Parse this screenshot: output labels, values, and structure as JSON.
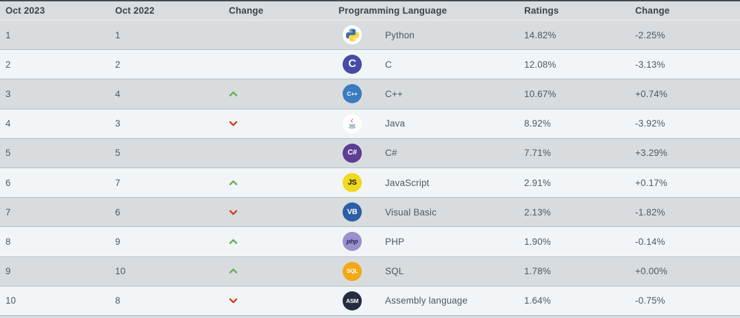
{
  "header": {
    "columns": [
      "Oct 2023",
      "Oct 2022",
      "Change",
      "Programming Language",
      "Ratings",
      "Change"
    ]
  },
  "rows": [
    {
      "oct2023": "1",
      "oct2022": "1",
      "rank_change": "",
      "language": "Python",
      "icon": {
        "name": "python-icon",
        "type": "python",
        "bg": "#ffffff"
      },
      "ratings": "14.82%",
      "change": "-2.25%"
    },
    {
      "oct2023": "2",
      "oct2022": "2",
      "rank_change": "",
      "language": "C",
      "icon": {
        "name": "c-icon",
        "type": "text",
        "bg": "#464ba5",
        "fg": "#ffffff",
        "label": "C"
      },
      "ratings": "12.08%",
      "change": "-3.13%"
    },
    {
      "oct2023": "3",
      "oct2022": "4",
      "rank_change": "up",
      "language": "C++",
      "icon": {
        "name": "cpp-icon",
        "type": "text",
        "bg": "#3b7bc0",
        "fg": "#ffffff",
        "label": "C++"
      },
      "ratings": "10.67%",
      "change": "+0.74%"
    },
    {
      "oct2023": "4",
      "oct2022": "3",
      "rank_change": "down",
      "language": "Java",
      "icon": {
        "name": "java-icon",
        "type": "java",
        "bg": "#ffffff"
      },
      "ratings": "8.92%",
      "change": "-3.92%"
    },
    {
      "oct2023": "5",
      "oct2022": "5",
      "rank_change": "",
      "language": "C#",
      "icon": {
        "name": "csharp-icon",
        "type": "text",
        "bg": "#5e3d94",
        "fg": "#ffffff",
        "label": "C#"
      },
      "ratings": "7.71%",
      "change": "+3.29%"
    },
    {
      "oct2023": "6",
      "oct2022": "7",
      "rank_change": "up",
      "language": "JavaScript",
      "icon": {
        "name": "javascript-icon",
        "type": "text",
        "bg": "#f0d91e",
        "fg": "#1a1a1a",
        "label": "JS"
      },
      "ratings": "2.91%",
      "change": "+0.17%"
    },
    {
      "oct2023": "7",
      "oct2022": "6",
      "rank_change": "down",
      "language": "Visual Basic",
      "icon": {
        "name": "visual-basic-icon",
        "type": "text",
        "bg": "#2c5fa5",
        "fg": "#ffffff",
        "label": "VB"
      },
      "ratings": "2.13%",
      "change": "-1.82%"
    },
    {
      "oct2023": "8",
      "oct2022": "9",
      "rank_change": "up",
      "language": "PHP",
      "icon": {
        "name": "php-icon",
        "type": "text",
        "bg": "#9a90cc",
        "fg": "#232a63",
        "label": "php",
        "italic": true
      },
      "ratings": "1.90%",
      "change": "-0.14%"
    },
    {
      "oct2023": "9",
      "oct2022": "10",
      "rank_change": "up",
      "language": "SQL",
      "icon": {
        "name": "sql-icon",
        "type": "text",
        "bg": "#f3a816",
        "fg": "#ffffff",
        "label": "SQL"
      },
      "ratings": "1.78%",
      "change": "+0.00%"
    },
    {
      "oct2023": "10",
      "oct2022": "8",
      "rank_change": "down",
      "language": "Assembly language",
      "icon": {
        "name": "assembly-icon",
        "type": "text",
        "bg": "#252c42",
        "fg": "#ffffff",
        "label": "ASM"
      },
      "ratings": "1.64%",
      "change": "-0.75%"
    }
  ],
  "colors": {
    "up_arrow": "#6fae50",
    "down_arrow": "#d2451d",
    "row_gray": "#d8dcdf",
    "row_light": "#f1f5f8"
  }
}
